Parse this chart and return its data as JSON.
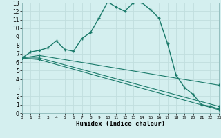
{
  "xlabel": "Humidex (Indice chaleur)",
  "bg_color": "#d4efef",
  "grid_color": "#c0dede",
  "line_color": "#1a7a6a",
  "xlim": [
    0,
    23
  ],
  "ylim": [
    0,
    13
  ],
  "xticks": [
    0,
    1,
    2,
    3,
    4,
    5,
    6,
    7,
    8,
    9,
    10,
    11,
    12,
    13,
    14,
    15,
    16,
    17,
    18,
    19,
    20,
    21,
    22,
    23
  ],
  "yticks": [
    0,
    1,
    2,
    3,
    4,
    5,
    6,
    7,
    8,
    9,
    10,
    11,
    12,
    13
  ],
  "line1_x": [
    0,
    1,
    2,
    3,
    4,
    5,
    6,
    7,
    8,
    9,
    10,
    11,
    12,
    13,
    14,
    15,
    16,
    17,
    18,
    19,
    20,
    21,
    22,
    23
  ],
  "line1_y": [
    6.5,
    7.2,
    7.4,
    7.7,
    8.5,
    7.5,
    7.3,
    8.8,
    9.5,
    11.2,
    13.1,
    12.5,
    12.0,
    13.0,
    13.0,
    12.2,
    11.2,
    8.2,
    4.5,
    3.0,
    2.2,
    1.0,
    0.8,
    0.5
  ],
  "line2_x": [
    0,
    2,
    23
  ],
  "line2_y": [
    6.5,
    6.8,
    3.3
  ],
  "line3_x": [
    0,
    2,
    23
  ],
  "line3_y": [
    6.5,
    6.5,
    0.8
  ],
  "line4_x": [
    0,
    2,
    23
  ],
  "line4_y": [
    6.5,
    6.3,
    0.4
  ]
}
